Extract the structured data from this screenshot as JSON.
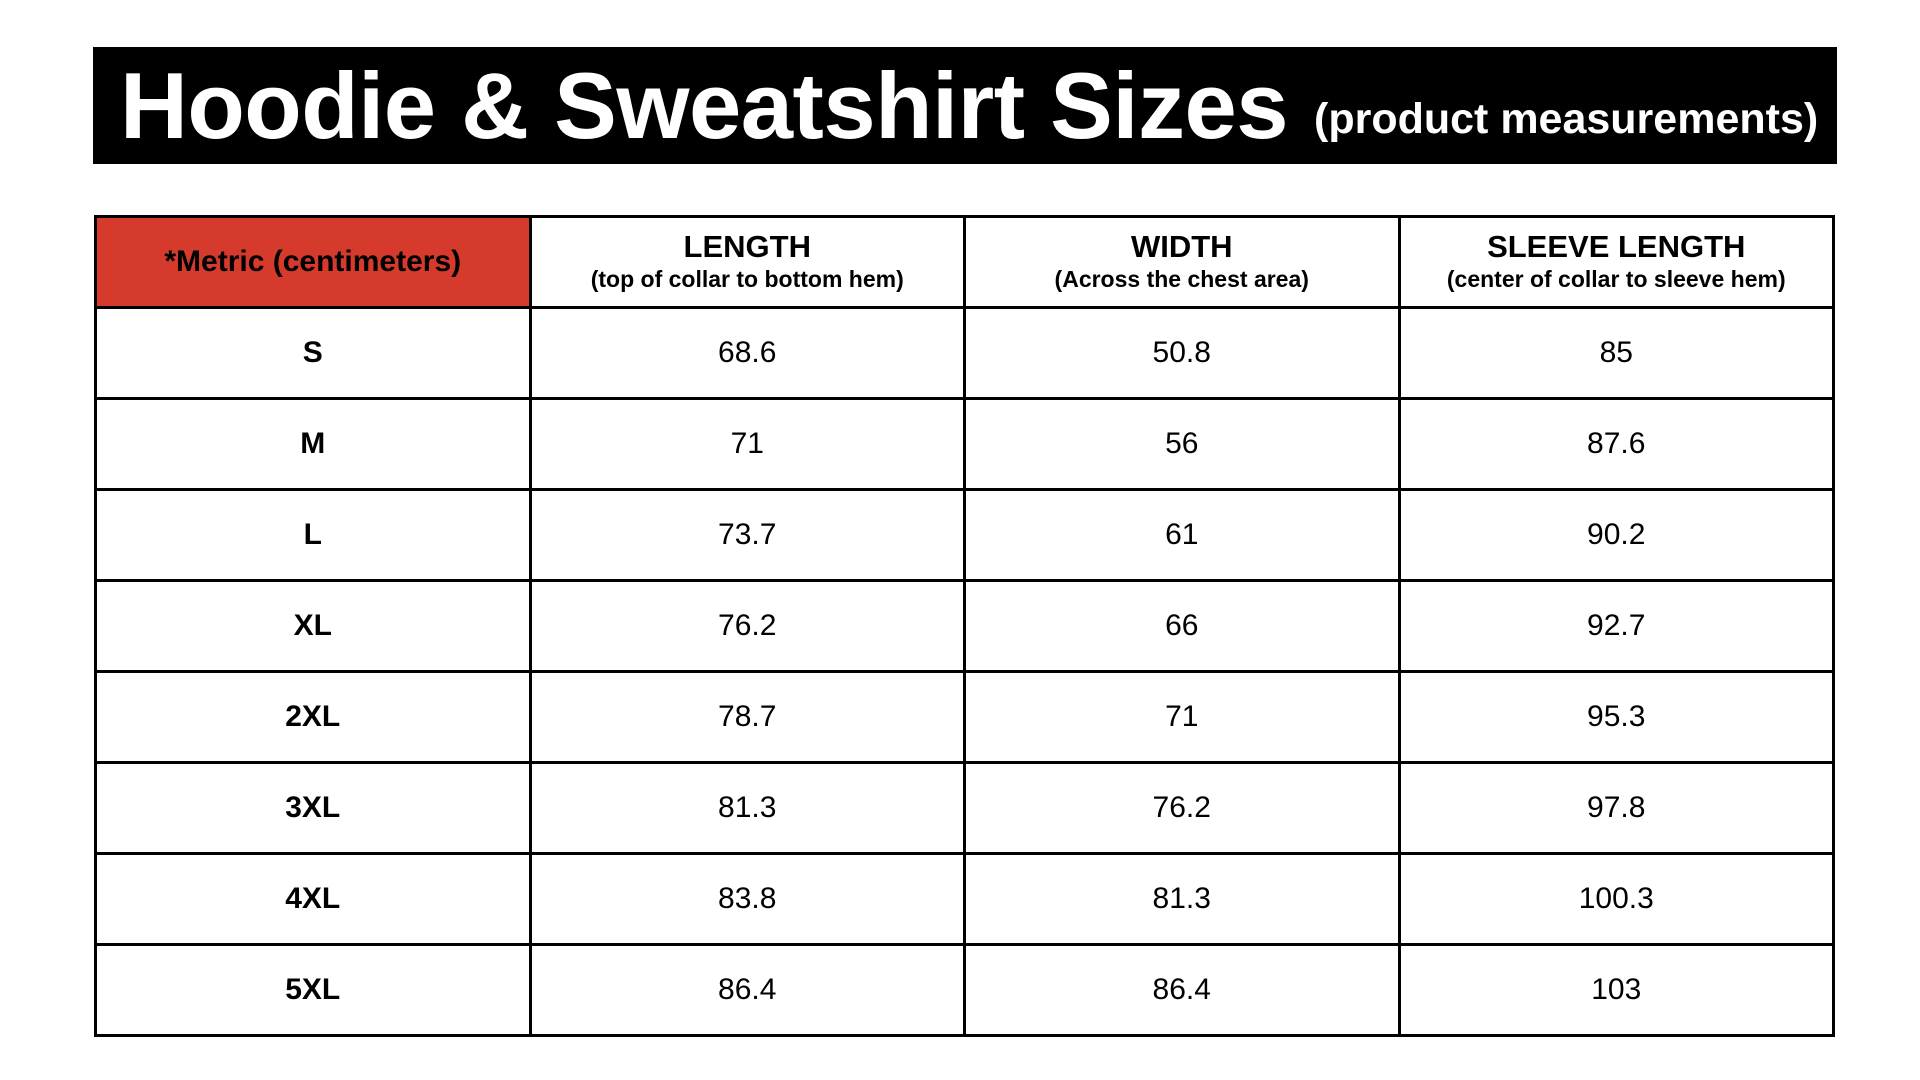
{
  "title": {
    "main": "Hoodie & Sweatshirt Sizes",
    "sub": "(product measurements)"
  },
  "table": {
    "corner_label": "*Metric (centimeters)",
    "columns": [
      {
        "title": "LENGTH",
        "subtitle": "(top of collar to bottom hem)"
      },
      {
        "title": "WIDTH",
        "subtitle": "(Across the chest area)"
      },
      {
        "title": "SLEEVE LENGTH",
        "subtitle": "(center of collar to sleeve hem)"
      }
    ],
    "rows": [
      {
        "size": "S",
        "values": [
          "68.6",
          "50.8",
          "85"
        ]
      },
      {
        "size": "M",
        "values": [
          "71",
          "56",
          "87.6"
        ]
      },
      {
        "size": "L",
        "values": [
          "73.7",
          "61",
          "90.2"
        ]
      },
      {
        "size": "XL",
        "values": [
          "76.2",
          "66",
          "92.7"
        ]
      },
      {
        "size": "2XL",
        "values": [
          "78.7",
          "71",
          "95.3"
        ]
      },
      {
        "size": "3XL",
        "values": [
          "81.3",
          "76.2",
          "97.8"
        ]
      },
      {
        "size": "4XL",
        "values": [
          "83.8",
          "81.3",
          "100.3"
        ]
      },
      {
        "size": "5XL",
        "values": [
          "86.4",
          "86.4",
          "103"
        ]
      }
    ]
  },
  "colors": {
    "title_background": "#000000",
    "title_text": "#ffffff",
    "metric_header_background": "#d63a2c",
    "metric_header_text": "#ffffff",
    "grid_lines": "#000000"
  }
}
